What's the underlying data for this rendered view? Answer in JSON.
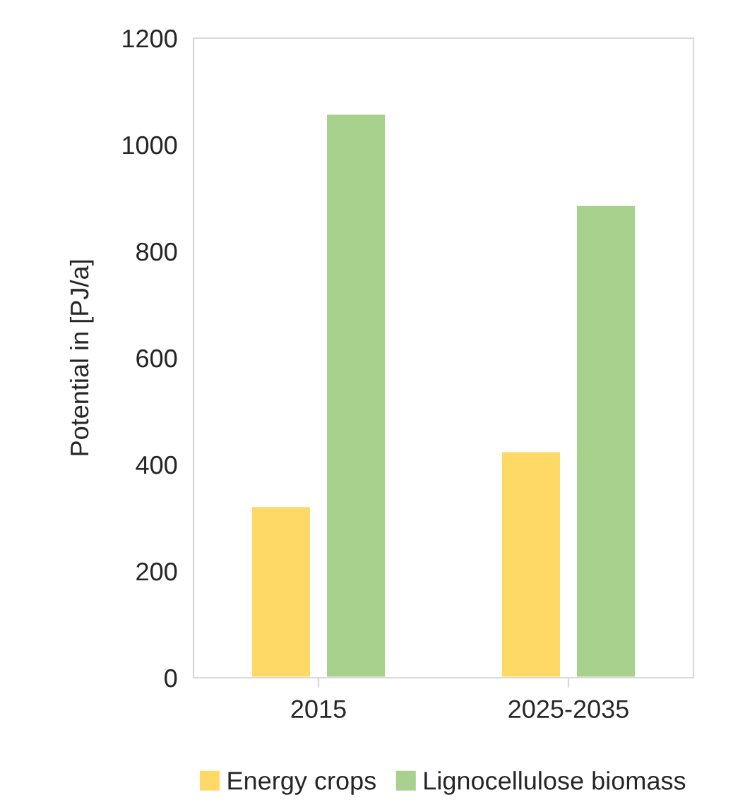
{
  "chart_data": {
    "type": "bar",
    "ylabel": "Potential in [PJ/a]",
    "categories": [
      "2015",
      "2025-2035"
    ],
    "series": [
      {
        "name": "Energy crops",
        "color": "#ffd966",
        "values": [
          322,
          425
        ]
      },
      {
        "name": "Lignocellulose biomass",
        "color": "#a9d18e",
        "values": [
          1058,
          887
        ]
      }
    ],
    "ylim": [
      0,
      1200
    ],
    "yticks": [
      0,
      200,
      400,
      600,
      800,
      1000,
      1200
    ],
    "grid": false,
    "legend": "bottom"
  }
}
